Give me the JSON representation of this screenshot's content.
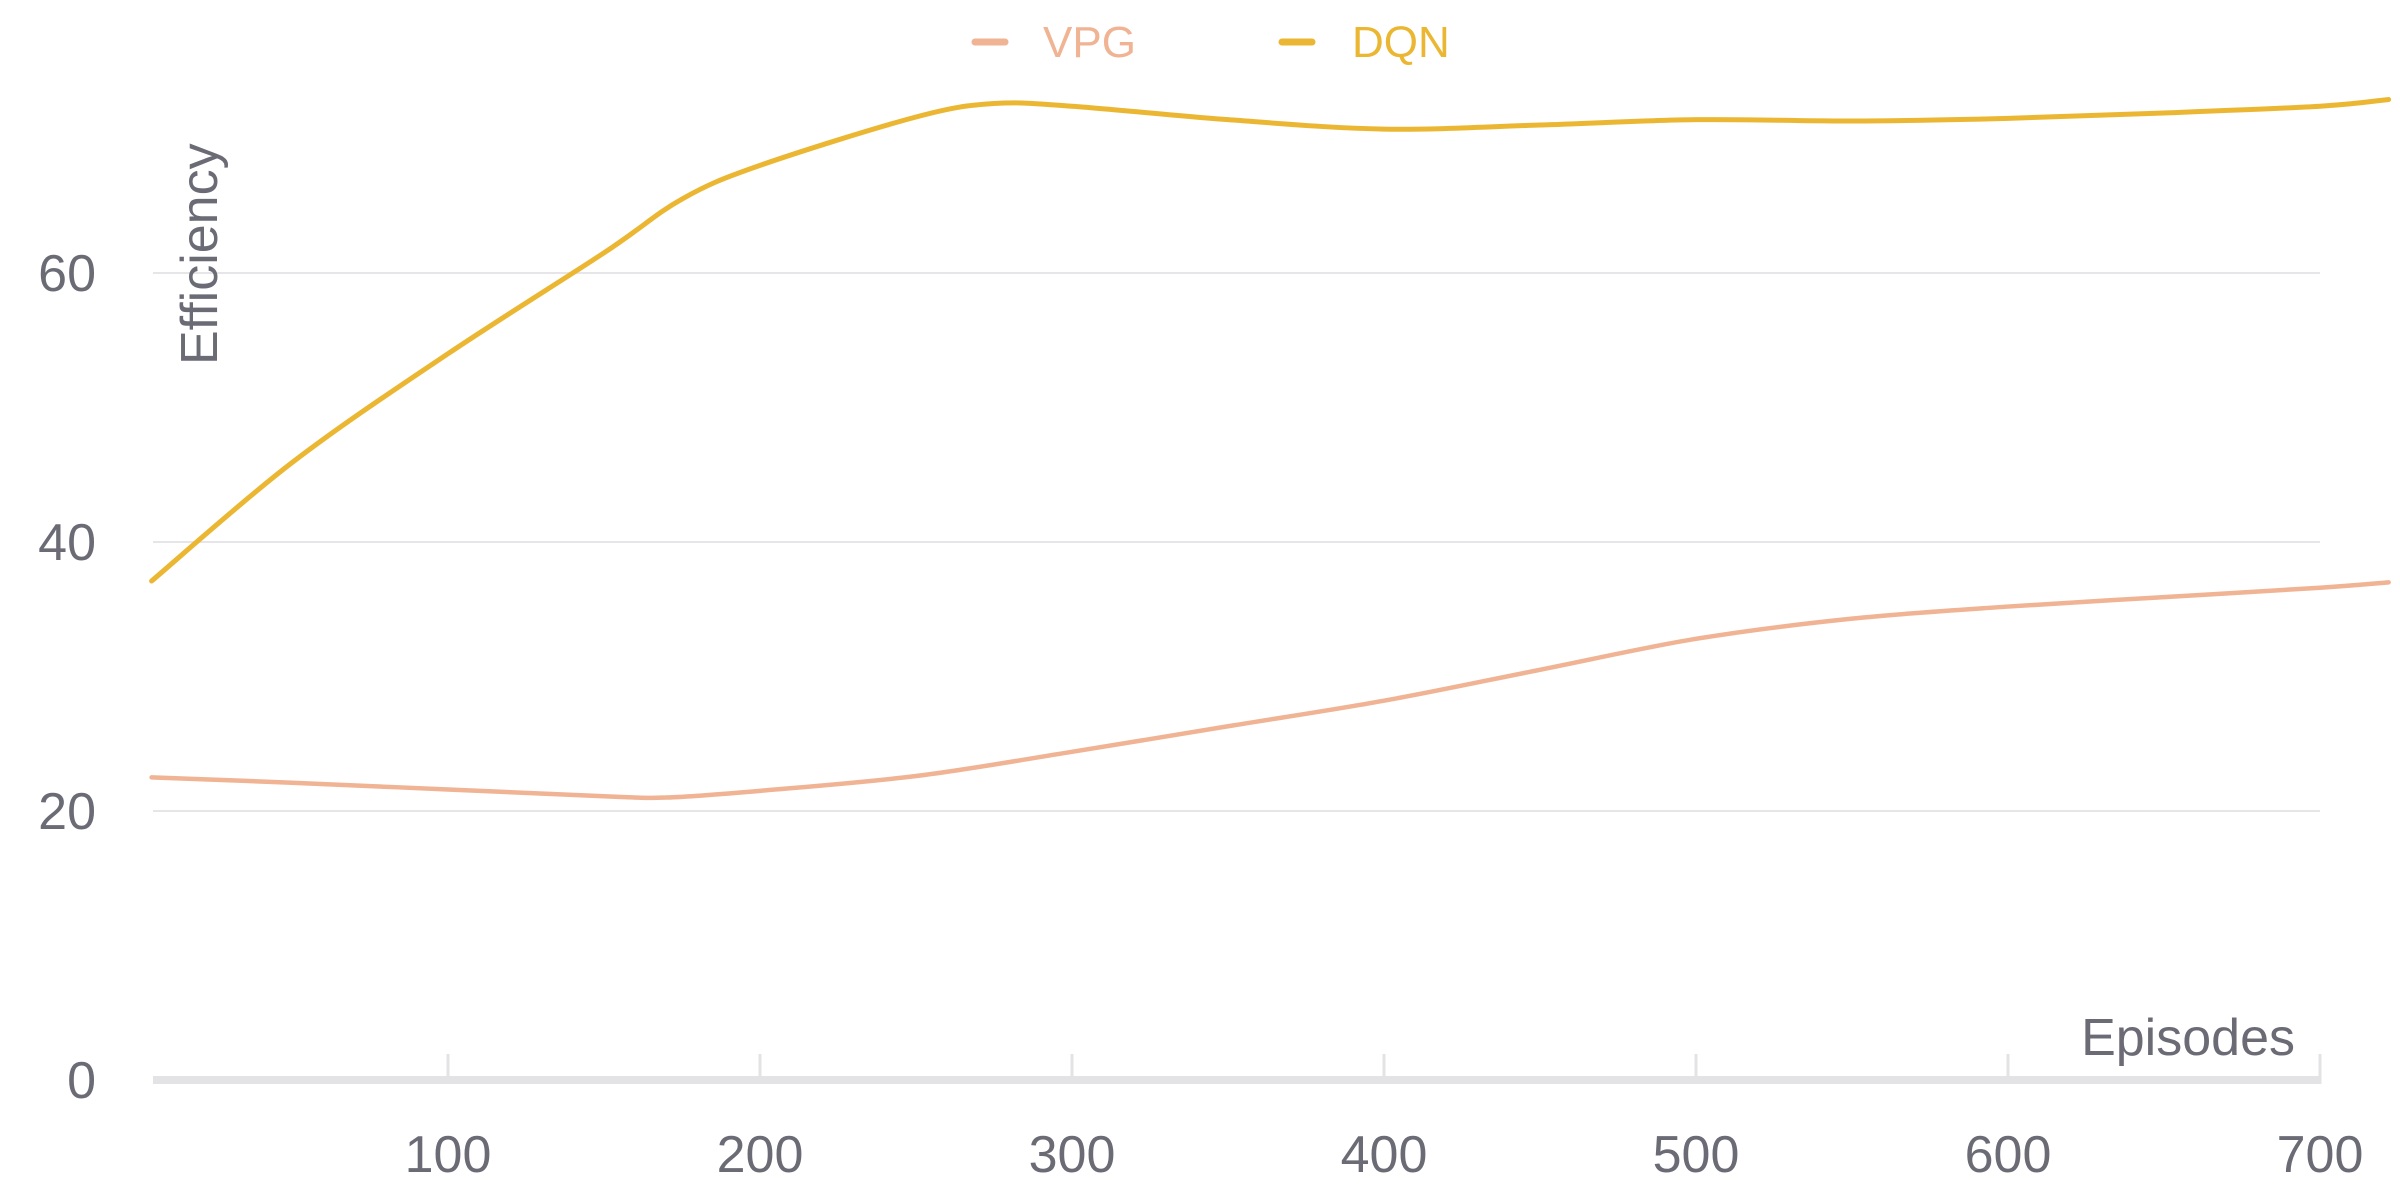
{
  "chart_data": {
    "type": "line",
    "title": "",
    "xlabel": "Episodes",
    "ylabel": "Efficiency",
    "xlim": [
      5,
      722
    ],
    "ylim": [
      0,
      78
    ],
    "x_ticks": [
      100,
      200,
      300,
      400,
      500,
      600,
      700
    ],
    "y_ticks": [
      0,
      20,
      40,
      60
    ],
    "grid": "horizontal",
    "legend_position": "top-center",
    "series": [
      {
        "name": "VPG",
        "color": "#f0b393",
        "points": [
          [
            5,
            22.5
          ],
          [
            50,
            22.1
          ],
          [
            100,
            21.6
          ],
          [
            150,
            21.1
          ],
          [
            170,
            21.0
          ],
          [
            200,
            21.5
          ],
          [
            250,
            22.6
          ],
          [
            300,
            24.4
          ],
          [
            350,
            26.3
          ],
          [
            400,
            28.2
          ],
          [
            450,
            30.5
          ],
          [
            500,
            32.8
          ],
          [
            550,
            34.3
          ],
          [
            600,
            35.2
          ],
          [
            650,
            35.9
          ],
          [
            700,
            36.6
          ],
          [
            722,
            37.0
          ]
        ]
      },
      {
        "name": "DQN",
        "color": "#ebb733",
        "points": [
          [
            5,
            37.1
          ],
          [
            50,
            45.9
          ],
          [
            100,
            54.0
          ],
          [
            150,
            61.5
          ],
          [
            175,
            65.5
          ],
          [
            200,
            68.0
          ],
          [
            250,
            71.6
          ],
          [
            275,
            72.6
          ],
          [
            300,
            72.4
          ],
          [
            350,
            71.4
          ],
          [
            400,
            70.7
          ],
          [
            450,
            71.0
          ],
          [
            500,
            71.4
          ],
          [
            550,
            71.3
          ],
          [
            600,
            71.5
          ],
          [
            650,
            71.9
          ],
          [
            700,
            72.4
          ],
          [
            722,
            72.9
          ]
        ]
      }
    ]
  }
}
